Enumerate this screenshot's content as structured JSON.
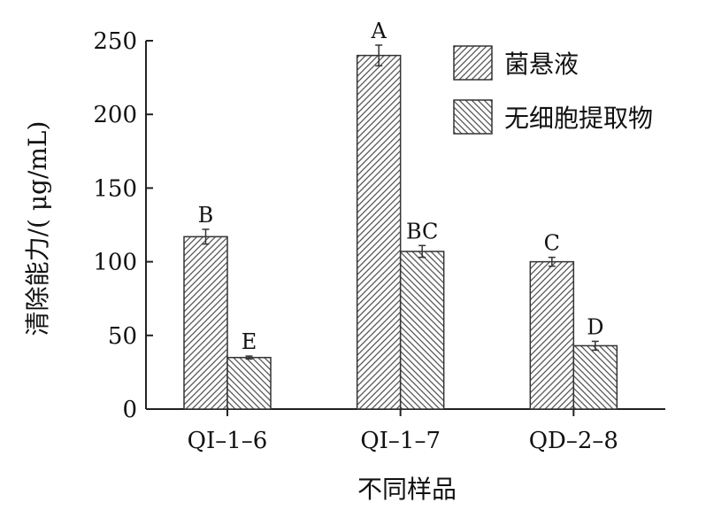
{
  "chart_data": {
    "type": "bar",
    "title": "",
    "xlabel": "不同样品",
    "ylabel": "清除能力/( μg/mL)",
    "ylim": [
      0,
      250
    ],
    "yticks": [
      0,
      50,
      100,
      150,
      200,
      250
    ],
    "categories": [
      "QI–1–6",
      "QI–1–7",
      "QD–2–8"
    ],
    "series": [
      {
        "name": "菌悬液",
        "pattern": "diagonal-forward",
        "values": [
          117,
          240,
          100
        ],
        "errors": [
          5,
          7,
          3
        ],
        "labels": [
          "B",
          "A",
          "C"
        ]
      },
      {
        "name": "无细胞提取物",
        "pattern": "diagonal-backward",
        "values": [
          35,
          107,
          43
        ],
        "errors": [
          1,
          4,
          3
        ],
        "labels": [
          "E",
          "BC",
          "D"
        ]
      }
    ],
    "grid": false,
    "legend": "top-right",
    "colors": {
      "bar_fill": "#ffffff",
      "bar_stroke": "#333333",
      "hatch": "#555555",
      "axis": "#222222"
    }
  }
}
